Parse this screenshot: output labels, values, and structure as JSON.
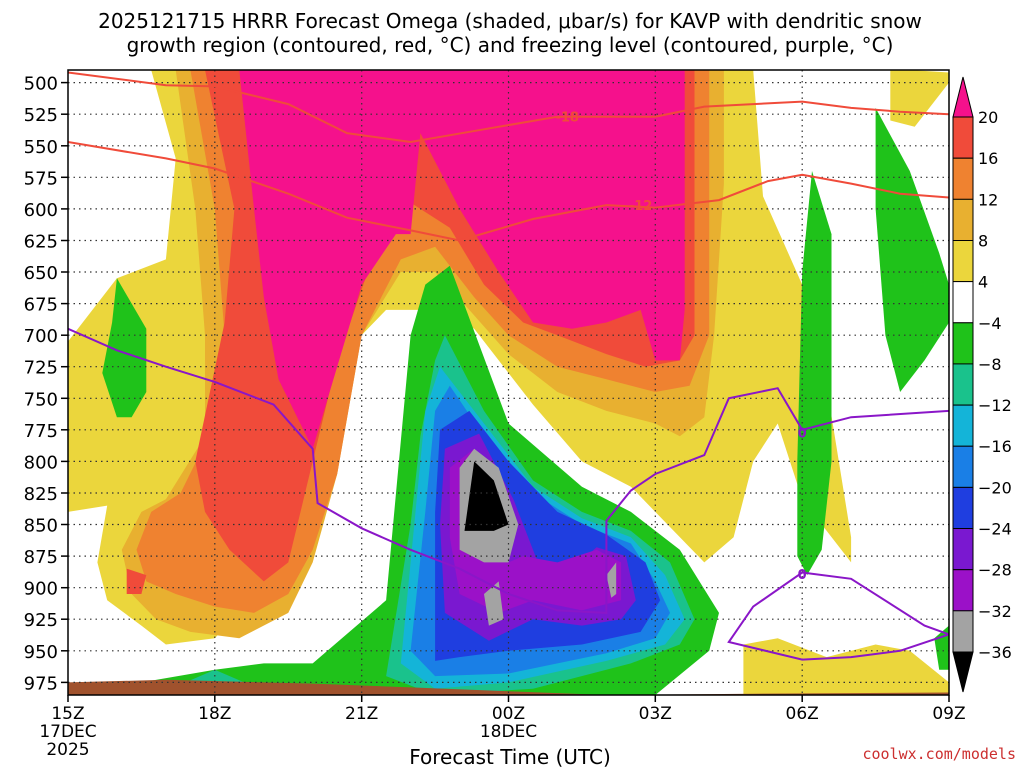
{
  "chart_data": {
    "type": "heatmap",
    "title_line1": "2025121715 HRRR Forecast Omega (shaded, μbar/s) for KAVP with dendritic snow",
    "title_line2": "growth region (contoured, red, °C) and freezing level (contoured, purple, °C)",
    "xlabel": "Forecast Time (UTC)",
    "watermark": "coolwx.com/models",
    "x_ticks": [
      {
        "label": "15Z",
        "hour": 15,
        "sub1": "17DEC",
        "sub2": "2025"
      },
      {
        "label": "18Z",
        "hour": 18
      },
      {
        "label": "21Z",
        "hour": 21
      },
      {
        "label": "00Z",
        "hour": 24,
        "sub1": "18DEC"
      },
      {
        "label": "03Z",
        "hour": 27
      },
      {
        "label": "06Z",
        "hour": 30
      },
      {
        "label": "09Z",
        "hour": 33
      }
    ],
    "xlim": [
      15,
      33
    ],
    "ylim": [
      985,
      490
    ],
    "y_ticks": [
      500,
      525,
      550,
      575,
      600,
      625,
      650,
      675,
      700,
      725,
      750,
      775,
      800,
      825,
      850,
      875,
      900,
      925,
      950,
      975
    ],
    "colorbar": {
      "labels": [
        "20",
        "16",
        "12",
        "8",
        "4",
        "−4",
        "−8",
        "−12",
        "−16",
        "−20",
        "−24",
        "−28",
        "−32",
        "−36"
      ],
      "levels": [
        20,
        16,
        12,
        8,
        4,
        -4,
        -8,
        -12,
        -16,
        -20,
        -24,
        -28,
        -32,
        -36
      ],
      "colors": [
        "#f5118c",
        "#f04b3a",
        "#ef8230",
        "#e8b030",
        "#ebd63c",
        "#ffffff",
        "#1fc21a",
        "#1ac28c",
        "#14b4d8",
        "#1a7fe6",
        "#1f3ee0",
        "#7a18d0",
        "#9b11c8",
        "#a3a3a3",
        "#000000"
      ]
    },
    "fill_colors": {
      "pos4": "#ebd63c",
      "pos8": "#e8b030",
      "pos12": "#ef8230",
      "pos16": "#f04b3a",
      "pos20": "#f5118c",
      "neg4": "#1fc21a",
      "neg8": "#1ac28c",
      "neg12": "#14b4d8",
      "neg16": "#1a7fe6",
      "neg20": "#1f3ee0",
      "neg24": "#7a18d0",
      "neg28": "#9b11c8",
      "neg32": "#a3a3a3",
      "neg36": "#000000",
      "ground": "#a0522d",
      "dgz_line": "#f04b3a",
      "freezing_line": "#8a16c8"
    },
    "contour_labels": {
      "dgz_top": "-18",
      "dgz_bottom": "-12",
      "freezing": "0"
    },
    "dgz_top_contour": [
      [
        15,
        492
      ],
      [
        17,
        502
      ],
      [
        18,
        503
      ],
      [
        19.5,
        517
      ],
      [
        20.7,
        540
      ],
      [
        22,
        547
      ],
      [
        23.5,
        537
      ],
      [
        25,
        527
      ],
      [
        27,
        527
      ],
      [
        28,
        519
      ],
      [
        29,
        517
      ],
      [
        30,
        515
      ],
      [
        31,
        520
      ],
      [
        32,
        523
      ],
      [
        33,
        525
      ]
    ],
    "dgz_bottom_contour": [
      [
        15,
        547
      ],
      [
        17,
        560
      ],
      [
        18,
        568
      ],
      [
        19.5,
        588
      ],
      [
        20.7,
        607
      ],
      [
        22,
        617
      ],
      [
        23,
        625
      ],
      [
        24.5,
        608
      ],
      [
        26,
        597
      ],
      [
        27,
        599
      ],
      [
        28.3,
        593
      ],
      [
        29.3,
        578
      ],
      [
        30,
        573
      ],
      [
        31,
        580
      ],
      [
        32,
        588
      ],
      [
        33,
        591
      ]
    ],
    "freezing_contour_main": [
      [
        15,
        695
      ],
      [
        16,
        712
      ],
      [
        17,
        725
      ],
      [
        18,
        737
      ],
      [
        19.2,
        755
      ],
      [
        20,
        790
      ],
      [
        20.1,
        833
      ],
      [
        21,
        853
      ],
      [
        22,
        870
      ],
      [
        23,
        885
      ],
      [
        24,
        905
      ],
      [
        25,
        918
      ],
      [
        26,
        920
      ],
      [
        26,
        847
      ],
      [
        26.5,
        823
      ],
      [
        27,
        810
      ],
      [
        28,
        795
      ],
      [
        28.5,
        750
      ],
      [
        29.5,
        742
      ],
      [
        30,
        775
      ],
      [
        31,
        765
      ],
      [
        33,
        760
      ]
    ],
    "freezing_contour_loop": [
      [
        30,
        888
      ],
      [
        31,
        893
      ],
      [
        32.5,
        930
      ],
      [
        33,
        937
      ],
      [
        32,
        950
      ],
      [
        31,
        955
      ],
      [
        30,
        957
      ],
      [
        28.5,
        943
      ],
      [
        29,
        915
      ],
      [
        30,
        888
      ]
    ]
  }
}
